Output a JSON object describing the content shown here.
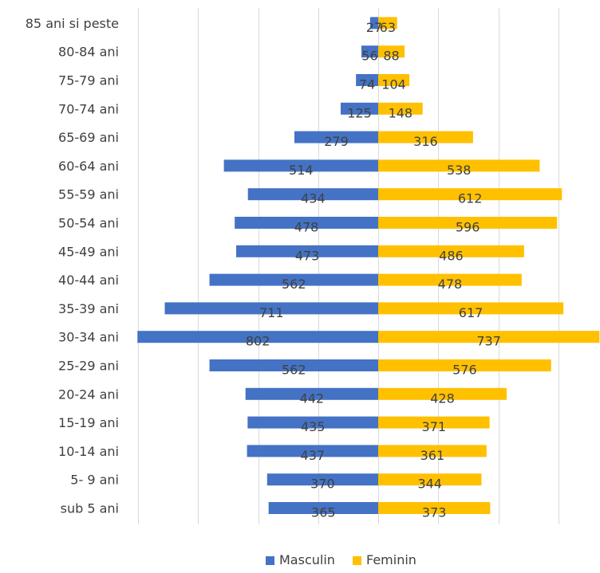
{
  "chart_data": {
    "type": "bar",
    "orientation": "horizontal",
    "layout": "population-pyramid",
    "categories": [
      "85 ani si peste",
      "80-84 ani",
      "75-79 ani",
      "70-74 ani",
      "65-69 ani",
      "60-64 ani",
      "55-59 ani",
      "50-54 ani",
      "45-49 ani",
      "40-44 ani",
      "35-39 ani",
      "30-34 ani",
      "25-29 ani",
      "20-24 ani",
      "15-19 ani",
      "10-14 ani",
      "5- 9 ani",
      "sub 5 ani"
    ],
    "series": [
      {
        "name": "Masculin",
        "color": "#4472C4",
        "values": [
          27,
          56,
          74,
          125,
          279,
          514,
          434,
          478,
          473,
          562,
          711,
          802,
          562,
          442,
          435,
          437,
          370,
          365
        ]
      },
      {
        "name": "Feminin",
        "color": "#FFC000",
        "values": [
          63,
          88,
          104,
          148,
          316,
          538,
          612,
          596,
          486,
          478,
          617,
          737,
          576,
          428,
          371,
          361,
          344,
          373
        ]
      }
    ],
    "xlim": [
      -800,
      800
    ],
    "grid": true,
    "legend_position": "bottom"
  }
}
